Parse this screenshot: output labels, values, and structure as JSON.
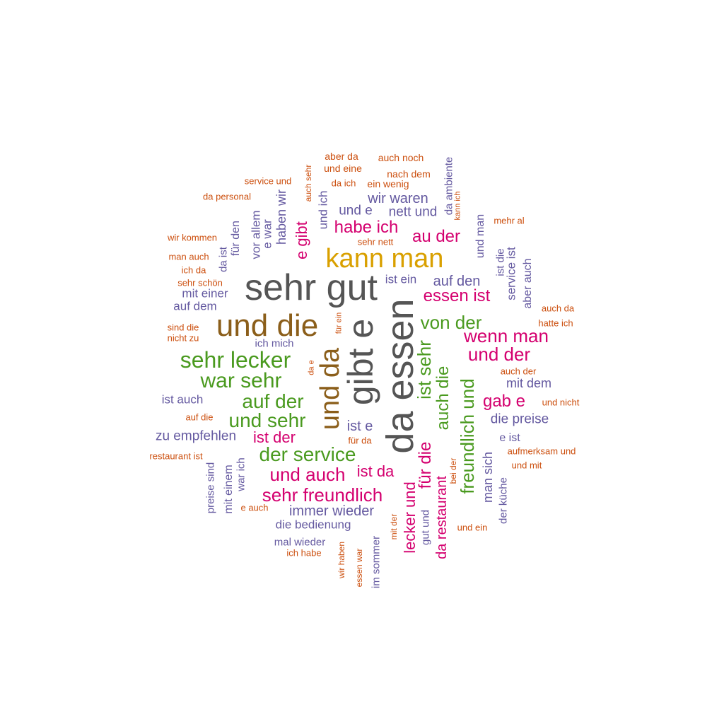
{
  "palette": {
    "dark": "#555555",
    "gold": "#d9a000",
    "brown": "#8b5e1a",
    "green": "#4a9a1f",
    "magenta": "#d4006f",
    "purple": "#6459a0",
    "orange": "#cc4f0e"
  },
  "words": [
    {
      "text": "da essen",
      "color": "dark",
      "rot": -90
    },
    {
      "text": "sehr gut",
      "color": "dark",
      "rot": 0
    },
    {
      "text": "gibt e",
      "color": "dark",
      "rot": -90
    },
    {
      "text": "und die",
      "color": "brown",
      "rot": 0
    },
    {
      "text": "und da",
      "color": "brown",
      "rot": -90
    },
    {
      "text": "kann man",
      "color": "gold",
      "rot": 0
    },
    {
      "text": "sehr lecker",
      "color": "green",
      "rot": 0
    },
    {
      "text": "war sehr",
      "color": "green",
      "rot": 0
    },
    {
      "text": "auf der",
      "color": "green",
      "rot": 0
    },
    {
      "text": "und sehr",
      "color": "green",
      "rot": 0
    },
    {
      "text": "der service",
      "color": "green",
      "rot": 0
    },
    {
      "text": "von der",
      "color": "green",
      "rot": 0
    },
    {
      "text": "ist sehr",
      "color": "green",
      "rot": -90
    },
    {
      "text": "auch die",
      "color": "green",
      "rot": -90
    },
    {
      "text": "freundlich und",
      "color": "green",
      "rot": -90
    },
    {
      "text": "habe ich",
      "color": "magenta",
      "rot": 0
    },
    {
      "text": "au der",
      "color": "magenta",
      "rot": 0
    },
    {
      "text": "essen ist",
      "color": "magenta",
      "rot": 0
    },
    {
      "text": "wenn man",
      "color": "magenta",
      "rot": 0
    },
    {
      "text": "und der",
      "color": "magenta",
      "rot": 0
    },
    {
      "text": "gab e",
      "color": "magenta",
      "rot": 0
    },
    {
      "text": "ist der",
      "color": "magenta",
      "rot": 0
    },
    {
      "text": "und auch",
      "color": "magenta",
      "rot": 0
    },
    {
      "text": "ist da",
      "color": "magenta",
      "rot": 0
    },
    {
      "text": "sehr freundlich",
      "color": "magenta",
      "rot": 0
    },
    {
      "text": "e gibt",
      "color": "magenta",
      "rot": -90
    },
    {
      "text": "lecker und",
      "color": "magenta",
      "rot": -90
    },
    {
      "text": "für die",
      "color": "magenta",
      "rot": -90
    },
    {
      "text": "da restaurant",
      "color": "magenta",
      "rot": -90
    },
    {
      "text": "wir waren",
      "color": "purple",
      "rot": 0
    },
    {
      "text": "nett und",
      "color": "purple",
      "rot": 0
    },
    {
      "text": "und e",
      "color": "purple",
      "rot": 0
    },
    {
      "text": "ist ein",
      "color": "purple",
      "rot": 0
    },
    {
      "text": "auf den",
      "color": "purple",
      "rot": 0
    },
    {
      "text": "mit einer",
      "color": "purple",
      "rot": 0
    },
    {
      "text": "auf dem",
      "color": "purple",
      "rot": 0
    },
    {
      "text": "ich mich",
      "color": "purple",
      "rot": 0
    },
    {
      "text": "ist auch",
      "color": "purple",
      "rot": 0
    },
    {
      "text": "zu empfehlen",
      "color": "purple",
      "rot": 0
    },
    {
      "text": "ist e",
      "color": "purple",
      "rot": 0
    },
    {
      "text": "immer wieder",
      "color": "purple",
      "rot": 0
    },
    {
      "text": "die bedienung",
      "color": "purple",
      "rot": 0
    },
    {
      "text": "mal wieder",
      "color": "purple",
      "rot": 0
    },
    {
      "text": "mit dem",
      "color": "purple",
      "rot": 0
    },
    {
      "text": "die preise",
      "color": "purple",
      "rot": 0
    },
    {
      "text": "e ist",
      "color": "purple",
      "rot": 0
    },
    {
      "text": "und ich",
      "color": "purple",
      "rot": -90
    },
    {
      "text": "haben wir",
      "color": "purple",
      "rot": -90
    },
    {
      "text": "e war",
      "color": "purple",
      "rot": -90
    },
    {
      "text": "vor allem",
      "color": "purple",
      "rot": -90
    },
    {
      "text": "für den",
      "color": "purple",
      "rot": -90
    },
    {
      "text": "da ist",
      "color": "purple",
      "rot": -90
    },
    {
      "text": "da ambiente",
      "color": "purple",
      "rot": -90
    },
    {
      "text": "und man",
      "color": "purple",
      "rot": -90
    },
    {
      "text": "ist die",
      "color": "purple",
      "rot": -90
    },
    {
      "text": "service ist",
      "color": "purple",
      "rot": -90
    },
    {
      "text": "aber auch",
      "color": "purple",
      "rot": -90
    },
    {
      "text": "man sich",
      "color": "purple",
      "rot": -90
    },
    {
      "text": "der küche",
      "color": "purple",
      "rot": -90
    },
    {
      "text": "preise sind",
      "color": "purple",
      "rot": -90
    },
    {
      "text": "mit einem",
      "color": "purple",
      "rot": -90
    },
    {
      "text": "war ich",
      "color": "purple",
      "rot": -90
    },
    {
      "text": "gut und",
      "color": "purple",
      "rot": -90
    },
    {
      "text": "im sommer",
      "color": "purple",
      "rot": -90
    },
    {
      "text": "aber da",
      "color": "orange",
      "rot": 0
    },
    {
      "text": "auch noch",
      "color": "orange",
      "rot": 0
    },
    {
      "text": "und eine",
      "color": "orange",
      "rot": 0
    },
    {
      "text": "nach dem",
      "color": "orange",
      "rot": 0
    },
    {
      "text": "da ich",
      "color": "orange",
      "rot": 0
    },
    {
      "text": "ein wenig",
      "color": "orange",
      "rot": 0
    },
    {
      "text": "service und",
      "color": "orange",
      "rot": 0
    },
    {
      "text": "da personal",
      "color": "orange",
      "rot": 0
    },
    {
      "text": "mehr al",
      "color": "orange",
      "rot": 0
    },
    {
      "text": "sehr nett",
      "color": "orange",
      "rot": 0
    },
    {
      "text": "wir kommen",
      "color": "orange",
      "rot": 0
    },
    {
      "text": "man auch",
      "color": "orange",
      "rot": 0
    },
    {
      "text": "ich da",
      "color": "orange",
      "rot": 0
    },
    {
      "text": "sehr schön",
      "color": "orange",
      "rot": 0
    },
    {
      "text": "auch da",
      "color": "orange",
      "rot": 0
    },
    {
      "text": "hatte ich",
      "color": "orange",
      "rot": 0
    },
    {
      "text": "sind die",
      "color": "orange",
      "rot": 0
    },
    {
      "text": "nicht zu",
      "color": "orange",
      "rot": 0
    },
    {
      "text": "auch der",
      "color": "orange",
      "rot": 0
    },
    {
      "text": "und nicht",
      "color": "orange",
      "rot": 0
    },
    {
      "text": "auf die",
      "color": "orange",
      "rot": 0
    },
    {
      "text": "restaurant ist",
      "color": "orange",
      "rot": 0
    },
    {
      "text": "aufmerksam und",
      "color": "orange",
      "rot": 0
    },
    {
      "text": "und mit",
      "color": "orange",
      "rot": 0
    },
    {
      "text": "e auch",
      "color": "orange",
      "rot": 0
    },
    {
      "text": "ich habe",
      "color": "orange",
      "rot": 0
    },
    {
      "text": "und ein",
      "color": "orange",
      "rot": 0
    },
    {
      "text": "für da",
      "color": "orange",
      "rot": 0
    },
    {
      "text": "auch sehr",
      "color": "orange",
      "rot": -90
    },
    {
      "text": "kann ich",
      "color": "orange",
      "rot": -90
    },
    {
      "text": "für ein",
      "color": "orange",
      "rot": -90
    },
    {
      "text": "da e",
      "color": "orange",
      "rot": -90
    },
    {
      "text": "bei der",
      "color": "orange",
      "rot": -90
    },
    {
      "text": "mit der",
      "color": "orange",
      "rot": -90
    },
    {
      "text": "wir haben",
      "color": "orange",
      "rot": -90
    },
    {
      "text": "essen war",
      "color": "orange",
      "rot": -90
    }
  ]
}
